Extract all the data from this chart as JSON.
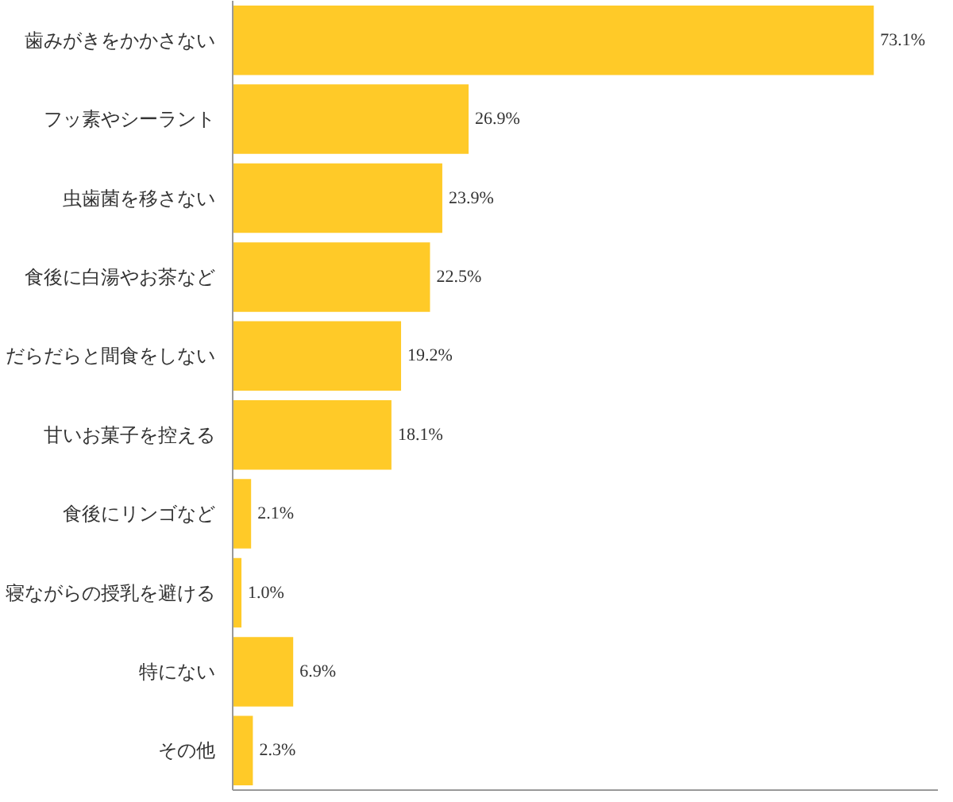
{
  "chart_data": {
    "type": "bar",
    "orientation": "horizontal",
    "data_labels": true,
    "grid": false,
    "categories": [
      "歯みがきをかかさない",
      "フッ素やシーラント",
      "虫歯菌を移さない",
      "食後に白湯やお茶など",
      "だらだらと間食をしない",
      "甘いお菓子を控える",
      "食後にリンゴなど",
      "寝ながらの授乳を避ける",
      "特にない",
      "その他"
    ],
    "values": [
      73.1,
      26.9,
      23.9,
      22.5,
      19.2,
      18.1,
      2.1,
      1.0,
      6.9,
      2.3
    ],
    "color": "#ffca28",
    "value_labels": [
      "73.1%",
      "26.9%",
      "23.9%",
      "22.5%",
      "19.2%",
      "18.1%",
      "2.1%",
      "1.0%",
      "6.9%",
      "2.3%"
    ]
  }
}
